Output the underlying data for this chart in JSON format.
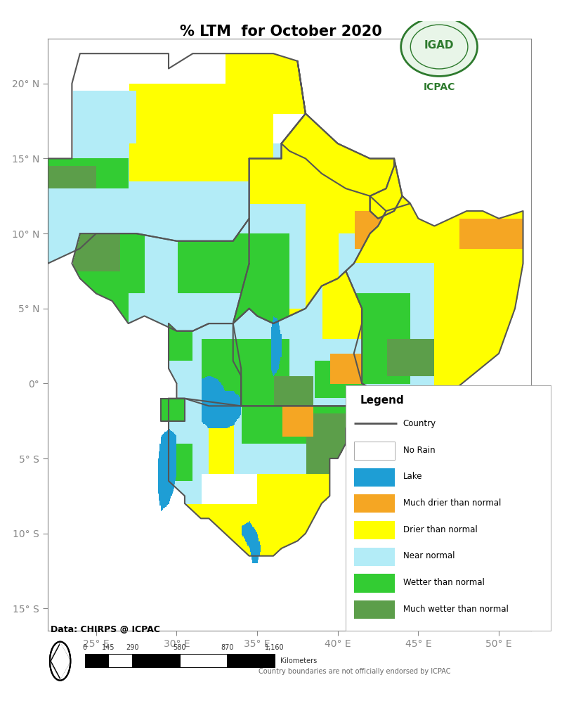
{
  "title": "% LTM  for October 2020",
  "title_fontsize": 15,
  "title_fontweight": "bold",
  "background_color": "#ffffff",
  "ax_facecolor": "#ffffff",
  "x_ticks": [
    25,
    30,
    35,
    40,
    45,
    50
  ],
  "y_ticks": [
    -15,
    -10,
    -5,
    0,
    5,
    10,
    15,
    20
  ],
  "x_tick_labels": [
    "25° E",
    "30° E",
    "35° E",
    "40° E",
    "45° E",
    "50° E"
  ],
  "y_tick_labels": [
    "15° S",
    "10° S",
    "5° S",
    "0°",
    "5° N",
    "10° N",
    "15° N",
    "20° N"
  ],
  "xlim": [
    22.0,
    52.0
  ],
  "ylim": [
    -16.5,
    23.0
  ],
  "legend_items": [
    {
      "label": "Country",
      "type": "line",
      "color": "#555555",
      "linewidth": 2.0
    },
    {
      "label": "No Rain",
      "type": "patch",
      "facecolor": "#ffffff",
      "edgecolor": "#aaaaaa"
    },
    {
      "label": "Lake",
      "type": "patch",
      "facecolor": "#1e9ed5",
      "edgecolor": "none"
    },
    {
      "label": "Much drier than normal",
      "type": "patch",
      "facecolor": "#f5a623",
      "edgecolor": "none"
    },
    {
      "label": "Drier than normal",
      "type": "patch",
      "facecolor": "#ffff00",
      "edgecolor": "none"
    },
    {
      "label": "Near normal",
      "type": "patch",
      "facecolor": "#b3ecf7",
      "edgecolor": "none"
    },
    {
      "label": "Wetter than normal",
      "type": "patch",
      "facecolor": "#33cc33",
      "edgecolor": "none"
    },
    {
      "label": "Much wetter than normal",
      "type": "patch",
      "facecolor": "#5c9e4a",
      "edgecolor": "none"
    }
  ],
  "data_source": "Data: CHIRPS @ ICPAC",
  "disclaimer": "Country boundaries are not officially endorsed by ICPAC",
  "scale_bar_values": [
    0,
    145,
    290,
    580,
    870,
    1160
  ],
  "scale_bar_unit": "Kilometers",
  "igad_color": "#2d7a2d",
  "igad_text": "IGAD",
  "icpac_text": "ICPAC",
  "tick_fontsize": 10,
  "border_color": "#888888",
  "country_border_color": "#555555",
  "country_border_lw": 1.5,
  "colors": {
    "no_rain": "#ffffff",
    "lake": "#1e9ed5",
    "much_drier": "#f5a623",
    "drier": "#ffff00",
    "near_normal": "#b3ecf7",
    "wetter": "#33cc33",
    "much_wetter": "#5c9e4a",
    "outside": "#ffffff"
  }
}
